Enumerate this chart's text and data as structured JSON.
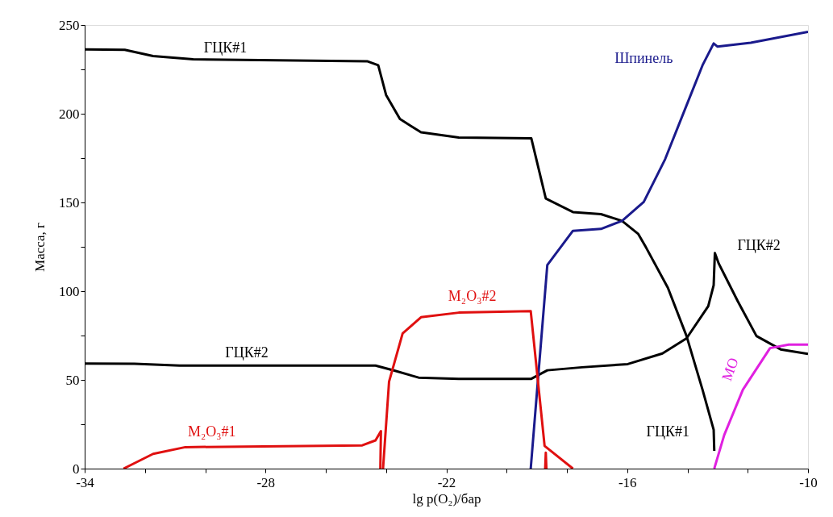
{
  "chart_data": {
    "type": "line",
    "xlabel": "lg p(O₂)/бар",
    "ylabel": "Масса, г",
    "xlim": [
      -34,
      -10
    ],
    "ylim": [
      0,
      250
    ],
    "xticks": [
      -34,
      {
        "value": -32,
        "label": null
      },
      {
        "value": -30,
        "label": null
      },
      -28,
      {
        "value": -26,
        "label": null
      },
      {
        "value": -24,
        "label": null
      },
      -22,
      {
        "value": -20,
        "label": null
      },
      {
        "value": -18,
        "label": null
      },
      -16,
      {
        "value": -14,
        "label": null
      },
      {
        "value": -12,
        "label": null
      },
      -10
    ],
    "yticks": [
      0,
      {
        "value": 25,
        "label": null
      },
      50,
      {
        "value": 75,
        "label": null
      },
      100,
      {
        "value": 125,
        "label": null
      },
      150,
      {
        "value": 175,
        "label": null
      },
      200,
      {
        "value": 225,
        "label": null
      },
      250
    ],
    "grid": false,
    "marker": "none",
    "line_style": "solid",
    "series": [
      {
        "name": "ГЦК#1",
        "color": "#000000",
        "x": [
          -34,
          -32.67,
          -31.73,
          -30.4,
          -24.61,
          -24.26,
          -24.0,
          -23.54,
          -22.84,
          -21.59,
          -19.18,
          -18.7,
          -17.8,
          -16.87,
          -16.17,
          -15.63,
          -15.37,
          -14.65,
          -14.03,
          -13.5,
          -13.13,
          -13.11
        ],
        "values": [
          236.3,
          236,
          232.5,
          230.7,
          229.5,
          227.3,
          210.6,
          197,
          189.5,
          186.6,
          186.1,
          152.2,
          144.6,
          143.4,
          139.6,
          132.2,
          124.5,
          101.9,
          74.7,
          44.5,
          21.9,
          10
        ]
      },
      {
        "name": "ГЦК#2",
        "color": "#000000",
        "x": [
          -34,
          -32.35,
          -30.85,
          -24.35,
          -23.72,
          -22.92,
          -21.59,
          -19.18,
          -18.65,
          -17.5,
          -15.98,
          -14.83,
          -14.03,
          -13.31,
          -13.13,
          -13.09,
          -12.96,
          -12.33,
          -11.71,
          -10.91,
          -10
        ],
        "values": [
          59.2,
          59.1,
          58.1,
          58.1,
          55.2,
          51.3,
          50.6,
          50.6,
          55.4,
          57.1,
          58.9,
          64.9,
          73.4,
          91.5,
          103.4,
          121.5,
          115.5,
          94.3,
          74.7,
          67.2,
          64.6
        ]
      },
      {
        "name": "Шпинель",
        "color": "#1a1a8c",
        "x": [
          -19.2,
          -18.65,
          -17.8,
          -16.87,
          -16.17,
          -15.45,
          -14.74,
          -14.03,
          -13.5,
          -13.13,
          -13.0,
          -11.9,
          -10
        ],
        "values": [
          0,
          114.7,
          134,
          135.1,
          139.6,
          150.3,
          174.4,
          204.7,
          227.3,
          239.6,
          237.8,
          240,
          246.1
        ]
      },
      {
        "name": "M₂O₃#1",
        "color": "#e01010",
        "x": [
          -32.71,
          -31.73,
          -30.66,
          -24.79,
          -24.35,
          -24.17,
          -24.19
        ],
        "values": [
          0,
          8.3,
          12.1,
          13.1,
          15.9,
          21.1,
          0
        ]
      },
      {
        "name": "M₂O₃#2",
        "color": "#e01010",
        "x": [
          -24.1,
          -23.9,
          -23.45,
          -22.84,
          -21.59,
          -19.2,
          -18.74,
          -17.8
        ],
        "values": [
          0,
          49,
          76.2,
          85.3,
          87.9,
          88.8,
          12.8,
          0
        ]
      },
      {
        "color": "#e01010",
        "x": [
          -18.72,
          -18.7,
          -18.68
        ],
        "values": [
          0,
          9,
          0
        ]
      },
      {
        "name": "MO",
        "color": "#e020e0",
        "x": [
          -13.11,
          -12.78,
          -12.16,
          -11.26,
          -10.64,
          -10
        ],
        "values": [
          0,
          18.9,
          44.5,
          67.9,
          69.9,
          69.9
        ]
      }
    ]
  }
}
